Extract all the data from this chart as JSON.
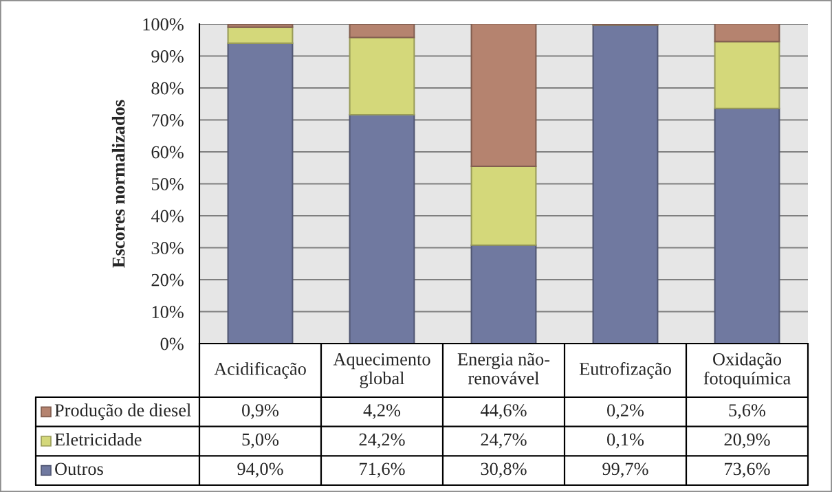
{
  "chart_data": {
    "type": "bar",
    "stacked": true,
    "ylabel": "Escores normalizados",
    "categories": [
      "Acidificação",
      "Aquecimento global",
      "Energia não-renovável",
      "Eutrofização",
      "Oxidação fotoquímica"
    ],
    "series": [
      {
        "name": "Outros",
        "color": "#7079a0",
        "values": [
          94.0,
          71.6,
          30.8,
          99.7,
          73.6
        ],
        "value_labels": [
          "94,0%",
          "71,6%",
          "30,8%",
          "99,7%",
          "73,6%"
        ]
      },
      {
        "name": "Eletricidade",
        "color": "#d4d87a",
        "values": [
          5.0,
          24.2,
          24.7,
          0.1,
          20.9
        ],
        "value_labels": [
          "5,0%",
          "24,2%",
          "24,7%",
          "0,1%",
          "20,9%"
        ]
      },
      {
        "name": "Produção de diesel",
        "color": "#b5836f",
        "values": [
          0.9,
          4.2,
          44.6,
          0.2,
          5.6
        ],
        "value_labels": [
          "0,9%",
          "4,2%",
          "44,6%",
          "0,2%",
          "5,6%"
        ]
      }
    ],
    "ylim": [
      0,
      100
    ],
    "yticks": [
      {
        "value": 0,
        "label": "0%"
      },
      {
        "value": 10,
        "label": "10%"
      },
      {
        "value": 20,
        "label": "20%"
      },
      {
        "value": 30,
        "label": "30%"
      },
      {
        "value": 40,
        "label": "40%"
      },
      {
        "value": 50,
        "label": "50%"
      },
      {
        "value": 60,
        "label": "60%"
      },
      {
        "value": 70,
        "label": "70%"
      },
      {
        "value": 80,
        "label": "80%"
      },
      {
        "value": 90,
        "label": "90%"
      },
      {
        "value": 100,
        "label": "100%"
      }
    ],
    "grid": "y",
    "legend": "bottom left"
  }
}
